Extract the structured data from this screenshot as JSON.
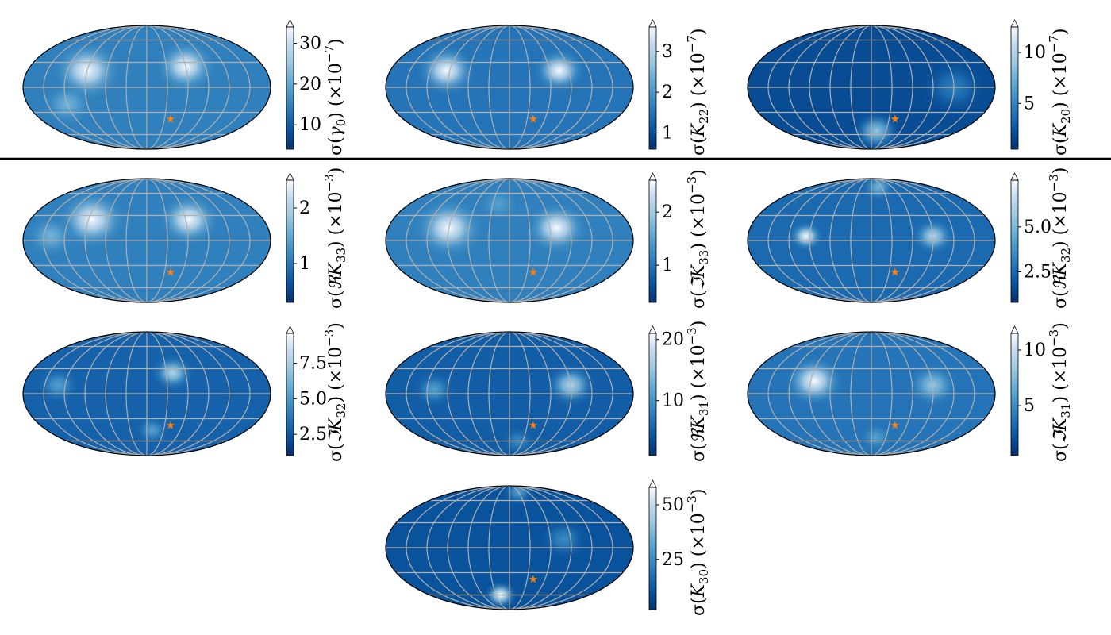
{
  "figure": {
    "colormap": [
      "#08306b",
      "#08519c",
      "#2171b5",
      "#4292c6",
      "#6baed6",
      "#9ecae1",
      "#c6dbef",
      "#f7fbff"
    ],
    "grid_color": "#b0b0b0",
    "outline_color": "#000000",
    "star_color": "#ff7f0e",
    "separator_color": "#000000"
  },
  "chart_data": [
    {
      "type": "heatmap",
      "projection": "mollweide",
      "colorbar": {
        "prefix": "σ(",
        "symbol": "γ",
        "sub": "0",
        "suffix": ")",
        "scale_base": "(×10",
        "scale_exp": "−7",
        "scale_end": ")",
        "vmin": 4,
        "vmax": 34,
        "ticks": [
          "10",
          "20",
          "30"
        ],
        "tick_values": [
          10,
          20,
          30
        ]
      },
      "blobs": [
        {
          "lon": -90,
          "lat": 20,
          "v": 1.0,
          "s": 40
        },
        {
          "lon": 60,
          "lat": 25,
          "v": 1.0,
          "s": 35
        },
        {
          "lon": -120,
          "lat": -20,
          "v": 0.6,
          "s": 30
        },
        {
          "lon": 0,
          "lat": 40,
          "v": 0.35,
          "s": 25
        }
      ],
      "base": 0.35,
      "marker": {
        "lon": 40,
        "lat": -38,
        "symbol": "★"
      }
    },
    {
      "type": "heatmap",
      "projection": "mollweide",
      "colorbar": {
        "prefix": "σ(",
        "symbol": "K",
        "sub": "22",
        "suffix": ")",
        "scale_base": "(×10",
        "scale_exp": "−7",
        "scale_end": ")",
        "vmin": 0.6,
        "vmax": 3.6,
        "ticks": [
          "1",
          "2",
          "3"
        ],
        "tick_values": [
          1,
          2,
          3
        ]
      },
      "blobs": [
        {
          "lon": -95,
          "lat": 20,
          "v": 1.0,
          "s": 35
        },
        {
          "lon": 75,
          "lat": 20,
          "v": 1.0,
          "s": 30
        }
      ],
      "base": 0.3,
      "marker": {
        "lon": 40,
        "lat": -38,
        "symbol": "★"
      }
    },
    {
      "type": "heatmap",
      "projection": "mollweide",
      "colorbar": {
        "prefix": "σ(",
        "symbol": "K",
        "sub": "20",
        "suffix": ")",
        "scale_base": "(×10",
        "scale_exp": "−7",
        "scale_end": ")",
        "vmin": 0.5,
        "vmax": 12.5,
        "ticks": [
          "5",
          "10"
        ],
        "tick_values": [
          5,
          10
        ]
      },
      "blobs": [
        {
          "lon": 10,
          "lat": -55,
          "v": 0.7,
          "s": 30
        },
        {
          "lon": 120,
          "lat": 0,
          "v": 0.35,
          "s": 40
        }
      ],
      "base": 0.12,
      "marker": {
        "lon": 40,
        "lat": -38,
        "symbol": "★"
      }
    },
    {
      "type": "heatmap",
      "projection": "mollweide",
      "colorbar": {
        "prefix": "σ(",
        "symbol": "ℜK",
        "sub": "33",
        "suffix": ")",
        "scale_base": "(×10",
        "scale_exp": "−3",
        "scale_end": ")",
        "vmin": 0.3,
        "vmax": 2.5,
        "ticks": [
          "1",
          "2"
        ],
        "tick_values": [
          1,
          2
        ]
      },
      "blobs": [
        {
          "lon": -85,
          "lat": 25,
          "v": 1.0,
          "s": 40
        },
        {
          "lon": 65,
          "lat": 25,
          "v": 1.0,
          "s": 35
        },
        {
          "lon": -140,
          "lat": 5,
          "v": 0.6,
          "s": 30
        }
      ],
      "base": 0.35,
      "marker": {
        "lon": 40,
        "lat": -38,
        "symbol": "★"
      }
    },
    {
      "type": "heatmap",
      "projection": "mollweide",
      "colorbar": {
        "prefix": "σ(",
        "symbol": "ℑK",
        "sub": "33",
        "suffix": ")",
        "scale_base": "(×10",
        "scale_exp": "−3",
        "scale_end": ")",
        "vmin": 0.3,
        "vmax": 2.6,
        "ticks": [
          "1",
          "2"
        ],
        "tick_values": [
          1,
          2
        ]
      },
      "blobs": [
        {
          "lon": -90,
          "lat": 15,
          "v": 1.0,
          "s": 40
        },
        {
          "lon": 70,
          "lat": 15,
          "v": 1.0,
          "s": 35
        },
        {
          "lon": -20,
          "lat": 45,
          "v": 0.5,
          "s": 25
        }
      ],
      "base": 0.35,
      "marker": {
        "lon": 40,
        "lat": -38,
        "symbol": "★"
      }
    },
    {
      "type": "heatmap",
      "projection": "mollweide",
      "colorbar": {
        "prefix": "σ(",
        "symbol": "ℜK",
        "sub": "32",
        "suffix": ")",
        "scale_base": "(×10",
        "scale_exp": "−3",
        "scale_end": ")",
        "vmin": 0.8,
        "vmax": 7.6,
        "ticks": [
          "2.5",
          "5.0"
        ],
        "tick_values": [
          2.5,
          5.0
        ]
      },
      "blobs": [
        {
          "lon": -95,
          "lat": 5,
          "v": 1.0,
          "s": 20
        },
        {
          "lon": 90,
          "lat": 5,
          "v": 0.8,
          "s": 25
        },
        {
          "lon": 20,
          "lat": 70,
          "v": 0.6,
          "s": 20
        }
      ],
      "base": 0.25,
      "marker": {
        "lon": 40,
        "lat": -38,
        "symbol": "★"
      }
    },
    {
      "type": "heatmap",
      "projection": "mollweide",
      "colorbar": {
        "prefix": "σ(",
        "symbol": "ℑK",
        "sub": "32",
        "suffix": ")",
        "scale_base": "(×10",
        "scale_exp": "−3",
        "scale_end": ")",
        "vmin": 1.0,
        "vmax": 9.6,
        "ticks": [
          "2.5",
          "5.0",
          "7.5"
        ],
        "tick_values": [
          2.5,
          5.0,
          7.5
        ]
      },
      "blobs": [
        {
          "lon": 40,
          "lat": 25,
          "v": 0.8,
          "s": 25
        },
        {
          "lon": -130,
          "lat": 10,
          "v": 0.5,
          "s": 25
        },
        {
          "lon": 10,
          "lat": -45,
          "v": 0.5,
          "s": 20
        }
      ],
      "base": 0.22,
      "marker": {
        "lon": 40,
        "lat": -38,
        "symbol": "★"
      }
    },
    {
      "type": "heatmap",
      "projection": "mollweide",
      "colorbar": {
        "prefix": "σ(",
        "symbol": "ℜK",
        "sub": "31",
        "suffix": ")",
        "scale_base": "(×10",
        "scale_exp": "−3",
        "scale_end": ")",
        "vmin": 1,
        "vmax": 21,
        "ticks": [
          "10",
          "20"
        ],
        "tick_values": [
          10,
          20
        ]
      },
      "blobs": [
        {
          "lon": 90,
          "lat": 10,
          "v": 0.8,
          "s": 30
        },
        {
          "lon": -110,
          "lat": 5,
          "v": 0.5,
          "s": 25
        },
        {
          "lon": 20,
          "lat": -60,
          "v": 0.4,
          "s": 20
        }
      ],
      "base": 0.2,
      "marker": {
        "lon": 40,
        "lat": -38,
        "symbol": "★"
      }
    },
    {
      "type": "heatmap",
      "projection": "mollweide",
      "colorbar": {
        "prefix": "σ(",
        "symbol": "ℑK",
        "sub": "31",
        "suffix": ")",
        "scale_base": "(×10",
        "scale_exp": "−3",
        "scale_end": ")",
        "vmin": 0.5,
        "vmax": 11.5,
        "ticks": [
          "5",
          "10"
        ],
        "tick_values": [
          5,
          10
        ]
      },
      "blobs": [
        {
          "lon": -85,
          "lat": 15,
          "v": 1.0,
          "s": 35
        },
        {
          "lon": 90,
          "lat": 10,
          "v": 0.7,
          "s": 30
        },
        {
          "lon": 10,
          "lat": -55,
          "v": 0.5,
          "s": 20
        }
      ],
      "base": 0.3,
      "marker": {
        "lon": 40,
        "lat": -38,
        "symbol": "★"
      }
    },
    {
      "type": "heatmap",
      "projection": "mollweide",
      "colorbar": {
        "prefix": "σ(",
        "symbol": "K",
        "sub": "30",
        "suffix": ")",
        "scale_base": "(×10",
        "scale_exp": "−3",
        "scale_end": ")",
        "vmin": 2,
        "vmax": 58,
        "ticks": [
          "25",
          "50"
        ],
        "tick_values": [
          25,
          50
        ]
      },
      "blobs": [
        {
          "lon": -20,
          "lat": -60,
          "v": 1.0,
          "s": 20
        },
        {
          "lon": 80,
          "lat": 10,
          "v": 0.4,
          "s": 30
        },
        {
          "lon": 30,
          "lat": 75,
          "v": 0.5,
          "s": 20
        }
      ],
      "base": 0.15,
      "marker": {
        "lon": 40,
        "lat": -38,
        "symbol": "★"
      }
    }
  ]
}
